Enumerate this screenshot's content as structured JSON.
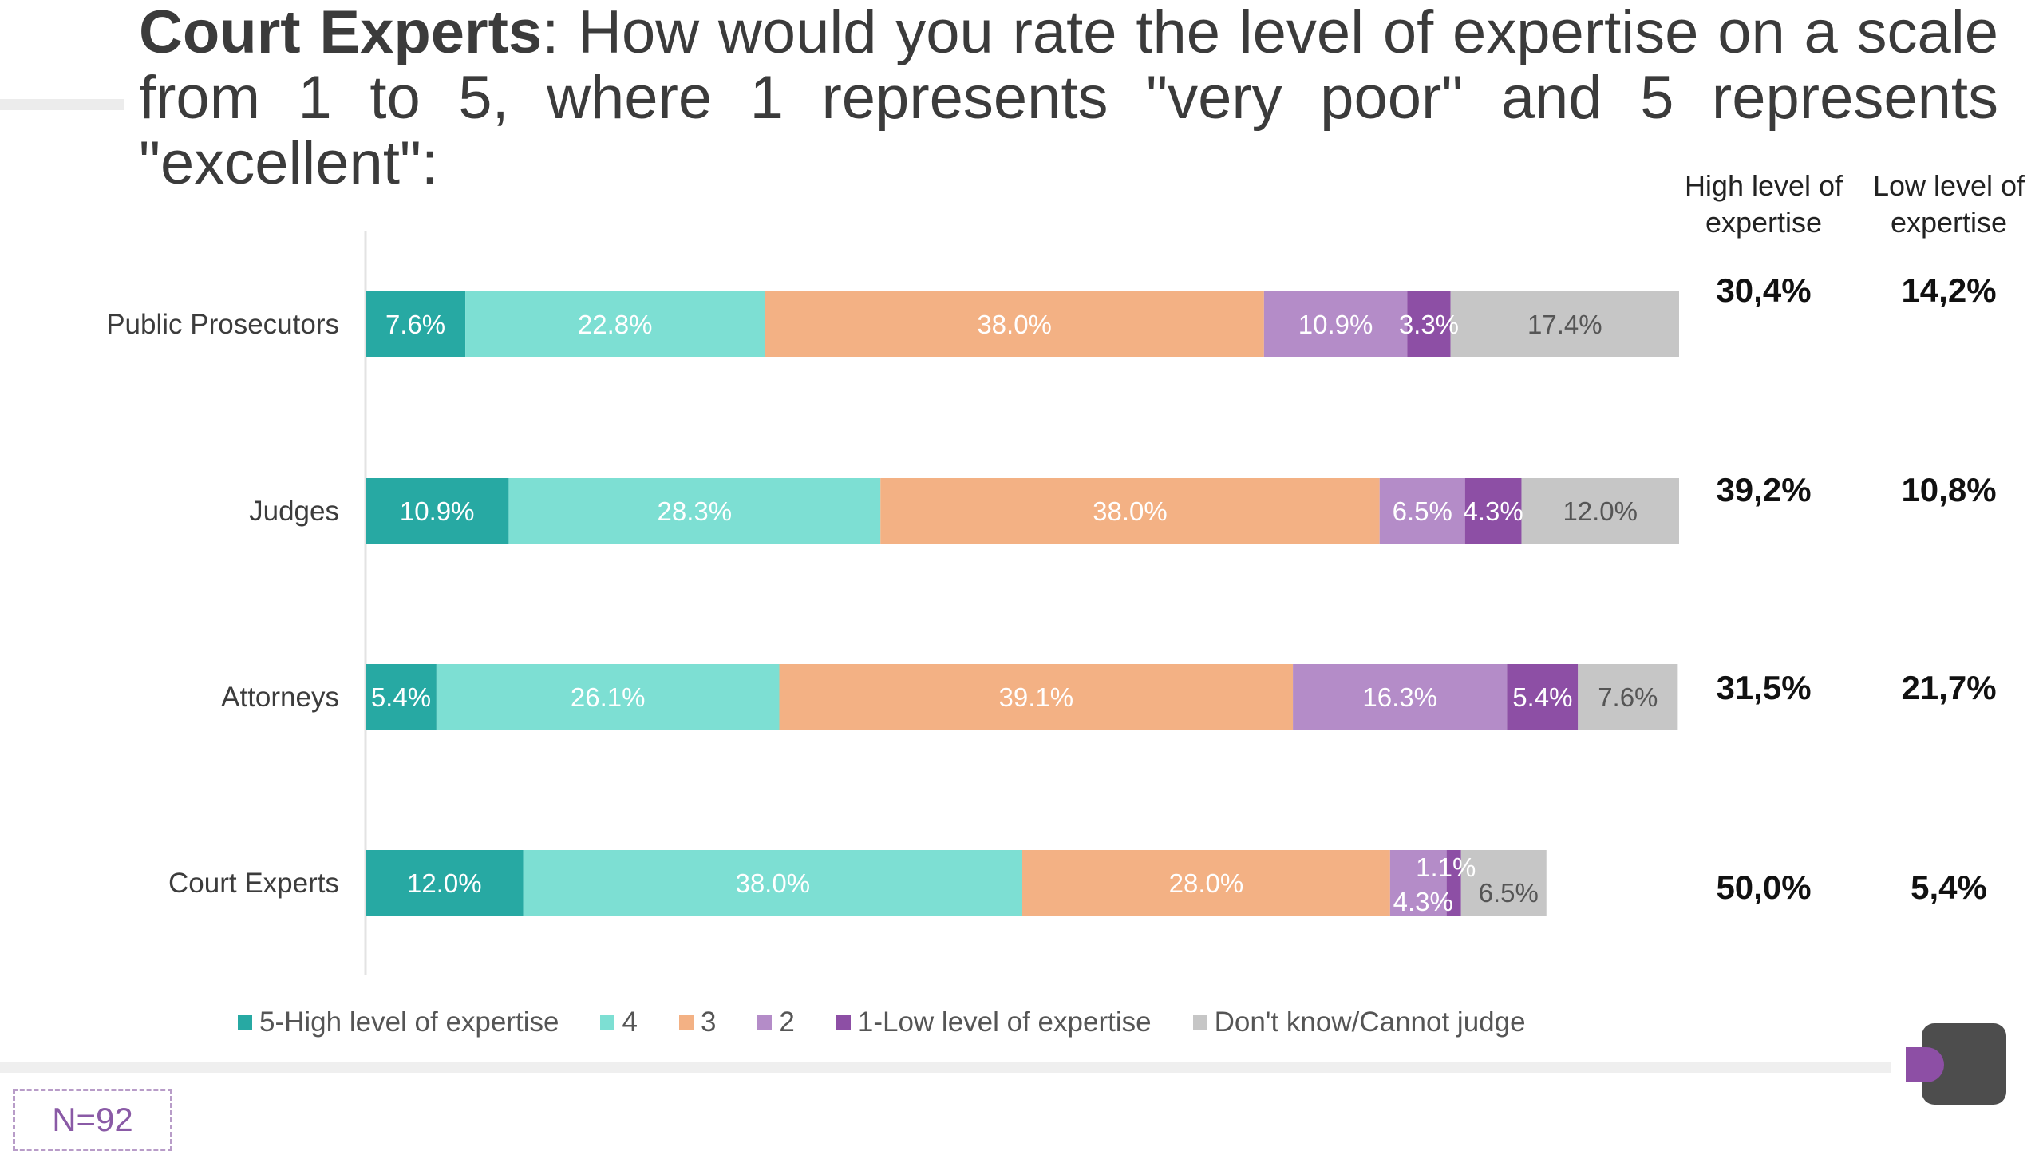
{
  "title": {
    "bold": "Court Experts",
    "rest": ": How would you rate the level of expertise on a scale from 1 to 5, where 1 represents \"very poor\" and 5 represents \"excellent\":"
  },
  "summary": {
    "high_header": "High level of expertise",
    "low_header": "Low level of expertise",
    "rows": [
      {
        "high": "30,4%",
        "low": "14,2%"
      },
      {
        "high": "39,2%",
        "low": "10,8%"
      },
      {
        "high": "31,5%",
        "low": "21,7%"
      },
      {
        "high": "50,0%",
        "low": "5,4%"
      }
    ]
  },
  "chart_data": {
    "type": "bar",
    "orientation": "horizontal",
    "stacked": true,
    "categories": [
      "Public Prosecutors",
      "Judges",
      "Attorneys",
      "Court Experts"
    ],
    "series": [
      {
        "name": "5-High level of expertise",
        "color": "#27a9a3",
        "label_color": "#ffffff",
        "values": [
          7.6,
          10.9,
          5.4,
          12.0
        ],
        "labels": [
          "7.6%",
          "10.9%",
          "5.4%",
          "12.0%"
        ]
      },
      {
        "name": "4",
        "color": "#7ddfd3",
        "label_color": "#ffffff",
        "values": [
          22.8,
          28.3,
          26.1,
          38.0
        ],
        "labels": [
          "22.8%",
          "28.3%",
          "26.1%",
          "38.0%"
        ]
      },
      {
        "name": "3",
        "color": "#f3b184",
        "label_color": "#ffffff",
        "values": [
          38.0,
          38.0,
          39.1,
          28.0
        ],
        "labels": [
          "38.0%",
          "38.0%",
          "39.1%",
          "28.0%"
        ]
      },
      {
        "name": "2",
        "color": "#b48cc8",
        "label_color": "#ffffff",
        "values": [
          10.9,
          6.5,
          16.3,
          4.3
        ],
        "labels": [
          "10.9%",
          "6.5%",
          "16.3%",
          "4.3%"
        ]
      },
      {
        "name": "1-Low level of expertise",
        "color": "#8d4fa5",
        "label_color": "#ffffff",
        "values": [
          3.3,
          4.3,
          5.4,
          1.1
        ],
        "labels": [
          "3.3%",
          "4.3%",
          "5.4%",
          "1.1%"
        ]
      },
      {
        "name": "Don't know/Cannot judge",
        "color": "#c6c6c6",
        "label_color": "#555555",
        "values": [
          17.4,
          12.0,
          7.6,
          6.5
        ],
        "labels": [
          "17.4%",
          "12.0%",
          "7.6%",
          "6.5%"
        ]
      }
    ],
    "xlim": [
      0,
      100
    ],
    "legend_position": "bottom",
    "grid": false
  },
  "footer": {
    "n_label": "N=92"
  },
  "logo": {
    "icon": "company-logo-icon"
  }
}
